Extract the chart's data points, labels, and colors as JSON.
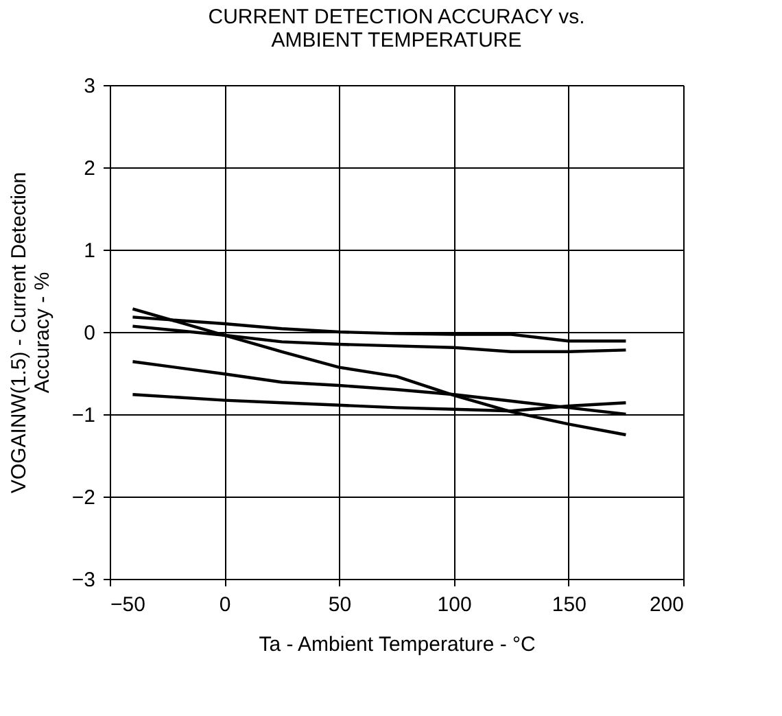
{
  "chart_data": {
    "type": "line",
    "title": "CURRENT DETECTION ACCURACY vs.\nAMBIENT  TEMPERATURE",
    "xlabel": "Ta - Ambient Temperature - °C",
    "ylabel": "VOGAINW(1.5) - Current Detection\nAccuracy - %",
    "x": [
      -40,
      0,
      25,
      50,
      75,
      100,
      125,
      150,
      175
    ],
    "series": [
      {
        "color": "#000000",
        "values": [
          0.28,
          -0.04,
          -0.24,
          -0.43,
          -0.54,
          -0.77,
          -0.97,
          -1.12,
          -1.25
        ]
      },
      {
        "color": "#000000",
        "values": [
          0.18,
          0.1,
          0.04,
          0.0,
          -0.02,
          -0.03,
          -0.03,
          -0.11,
          -0.11
        ]
      },
      {
        "color": "#000000",
        "values": [
          0.07,
          -0.04,
          -0.12,
          -0.15,
          -0.17,
          -0.19,
          -0.24,
          -0.24,
          -0.22
        ]
      },
      {
        "color": "#000000",
        "values": [
          -0.36,
          -0.51,
          -0.61,
          -0.65,
          -0.7,
          -0.76,
          -0.84,
          -0.92,
          -1.0
        ]
      },
      {
        "color": "#000000",
        "values": [
          -0.76,
          -0.83,
          -0.86,
          -0.89,
          -0.92,
          -0.94,
          -0.96,
          -0.9,
          -0.86
        ]
      }
    ],
    "xlim": [
      -50,
      200
    ],
    "xticks": [
      {
        "value": -50,
        "label": "−50"
      },
      0,
      50,
      100,
      150,
      200
    ],
    "ylim": [
      -3,
      3
    ],
    "yticks": [
      {
        "value": -3,
        "label": "−3"
      },
      {
        "value": -2,
        "label": "−2"
      },
      {
        "value": -1,
        "label": "−1"
      },
      0,
      1,
      2,
      3
    ],
    "grid": true,
    "legend": false,
    "marker": "none",
    "line_style": "solid"
  }
}
